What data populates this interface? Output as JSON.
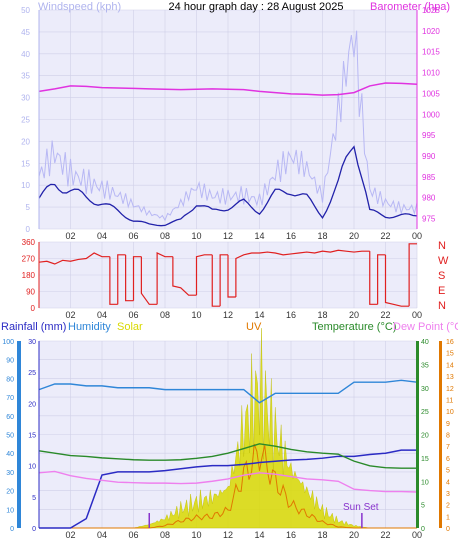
{
  "title": "24 hour graph day : 28 August 2025",
  "colors": {
    "wind_label": "#b0b4ee",
    "wind_avg": "#2222aa",
    "wind_gust": "#b8b8f4",
    "barometer": "#e033e0",
    "direction": "#e02020",
    "rain": "#2b2bc4",
    "humidity": "#2f86d8",
    "solar": "#d9d900",
    "uv": "#e07800",
    "temperature": "#2a8a2a",
    "dewpoint": "#ee80ee",
    "sunset": "#8833cc",
    "plot_bg": "#ececfa",
    "grid": "#d0d0e8"
  },
  "chart_data": [
    {
      "type": "line",
      "panel": "wind-barometer",
      "xlabel_ticks": [
        "02",
        "04",
        "06",
        "08",
        "10",
        "12",
        "14",
        "16",
        "18",
        "20",
        "22",
        "00"
      ],
      "x_hours": [
        0,
        1,
        2,
        3,
        4,
        5,
        6,
        7,
        8,
        9,
        10,
        11,
        12,
        13,
        14,
        15,
        16,
        17,
        18,
        19,
        20,
        21,
        22,
        23,
        24
      ],
      "left_axis": {
        "label": "Windspeed (kph)",
        "ylim": [
          0,
          50
        ],
        "ticks": [
          "0",
          "5",
          "10",
          "15",
          "20",
          "25",
          "30",
          "35",
          "40",
          "45",
          "50"
        ]
      },
      "right_axis": {
        "label": "Barometer (hpa)",
        "ylim": [
          972.5,
          1025
        ],
        "ticks": [
          "975",
          "980",
          "985",
          "990",
          "995",
          "1000",
          "1005",
          "1010",
          "1015",
          "1020",
          "1025"
        ]
      },
      "series": [
        {
          "name": "Windspeed (kph)",
          "role": "wind_avg",
          "values": [
            7,
            10,
            9,
            7,
            6,
            4,
            2,
            1,
            1,
            2,
            6,
            4,
            5,
            6,
            4,
            8,
            9,
            7,
            3,
            10,
            21,
            4,
            3,
            3,
            3
          ]
        },
        {
          "name": "",
          "role": "wind_gust",
          "values": [
            12,
            20,
            16,
            14,
            11,
            8,
            5,
            3,
            2,
            5,
            9,
            8,
            9,
            10,
            8,
            14,
            16,
            12,
            6,
            22,
            40,
            9,
            7,
            6,
            6
          ]
        },
        {
          "name": "Barometer (hpa)",
          "role": "barometer",
          "values": [
            1005.5,
            1006.1,
            1006.8,
            1006.7,
            1006.4,
            1006.3,
            1006.2,
            1006.1,
            1006.0,
            1005.9,
            1006.0,
            1006.1,
            1006.0,
            1005.9,
            1005.5,
            1005.2,
            1004.9,
            1004.8,
            1004.6,
            1004.7,
            1005.2,
            1006.8,
            1007.5,
            1007.4,
            1007.2
          ]
        }
      ]
    },
    {
      "type": "line",
      "panel": "wind-direction",
      "xlabel_ticks": [
        "02",
        "04",
        "06",
        "08",
        "10",
        "12",
        "14",
        "16",
        "18",
        "20",
        "22",
        "00"
      ],
      "ylim": [
        0,
        360
      ],
      "yticks": [
        "0",
        "90",
        "180",
        "270",
        "360"
      ],
      "compass": [
        "N",
        "W",
        "S",
        "E",
        "N"
      ],
      "series": [
        {
          "name": "",
          "role": "direction",
          "x_hours": [
            0,
            0.5,
            1,
            1.5,
            2,
            2.5,
            3,
            3.5,
            4,
            4.5,
            5,
            5.5,
            6,
            6.5,
            7,
            7.5,
            8,
            8.5,
            9,
            9.5,
            10,
            10.5,
            11,
            11.5,
            12,
            12.5,
            13,
            13.5,
            14,
            14.5,
            15,
            15.5,
            16,
            16.5,
            17,
            17.5,
            18,
            18.5,
            19,
            19.5,
            20,
            20.5,
            21,
            21.5,
            22,
            22.5,
            23,
            23.5,
            24
          ],
          "values": [
            250,
            255,
            240,
            260,
            255,
            265,
            270,
            300,
            280,
            20,
            290,
            40,
            280,
            80,
            20,
            300,
            280,
            120,
            110,
            70,
            280,
            290,
            10,
            290,
            60,
            270,
            290,
            300,
            300,
            305,
            300,
            290,
            295,
            300,
            305,
            300,
            310,
            305,
            315,
            310,
            305,
            310,
            20,
            290,
            30,
            20,
            10,
            350,
            350
          ]
        }
      ]
    },
    {
      "type": "line",
      "panel": "rain-humidity-solar-temperature",
      "xlabel_ticks": [
        "02",
        "04",
        "06",
        "08",
        "10",
        "12",
        "14",
        "16",
        "18",
        "20",
        "22",
        "00"
      ],
      "x_hours": [
        0,
        1,
        2,
        3,
        4,
        5,
        6,
        7,
        8,
        9,
        10,
        11,
        12,
        13,
        14,
        15,
        16,
        17,
        18,
        19,
        20,
        21,
        22,
        23,
        24
      ],
      "axes": {
        "humidity": {
          "label": "Humidity",
          "ylim": [
            0,
            100
          ],
          "ticks": [
            "0",
            "10",
            "20",
            "30",
            "40",
            "50",
            "60",
            "70",
            "80",
            "90",
            "100"
          ]
        },
        "rainfall": {
          "label": "Rainfall (mm)",
          "ylim": [
            0,
            30
          ],
          "ticks": [
            "0",
            "5",
            "10",
            "15",
            "20",
            "25",
            "30"
          ]
        },
        "temperature": {
          "label": "Temperature (°C)",
          "ylim": [
            0,
            40
          ],
          "ticks": [
            "0",
            "5",
            "10",
            "15",
            "20",
            "25",
            "30",
            "35",
            "40"
          ]
        },
        "uv": {
          "label": "UV",
          "ylim": [
            0,
            16
          ],
          "ticks": [
            "0",
            "1",
            "2",
            "3",
            "4",
            "5",
            "6",
            "7",
            "8",
            "9",
            "10",
            "11",
            "12",
            "13",
            "14",
            "15",
            "16"
          ]
        },
        "solar": {
          "label": "Solar"
        },
        "dewpoint": {
          "label": "Dew Point (°C)"
        }
      },
      "annotation": "Sun Set",
      "sunrise_hour": 7.0,
      "sunset_hour": 20.5,
      "series": [
        {
          "name": "Rainfall (mm)",
          "role": "rain",
          "values": [
            0,
            0,
            0,
            1.5,
            8.5,
            9.0,
            9.0,
            9.0,
            9.2,
            9.5,
            9.8,
            10.0,
            10.0,
            10.2,
            10.5,
            10.7,
            10.9,
            11.0,
            11.2,
            11.5,
            11.5,
            11.8,
            12.0,
            12.5,
            12.5
          ]
        },
        {
          "name": "Humidity",
          "role": "humidity",
          "values": [
            74,
            77,
            77,
            76,
            76,
            75,
            75,
            75,
            74,
            74,
            74,
            74,
            74,
            74,
            67,
            72,
            72,
            72,
            72,
            72,
            78,
            78,
            78,
            79,
            78
          ]
        },
        {
          "name": "Temperature (°C)",
          "role": "temperature",
          "values": [
            16.5,
            16.0,
            15.5,
            15.3,
            15.0,
            14.8,
            14.6,
            14.5,
            14.5,
            14.6,
            14.9,
            15.3,
            16.0,
            17.0,
            18.0,
            17.5,
            16.8,
            16.3,
            16.0,
            15.8,
            14.3,
            13.3,
            12.9,
            12.8,
            12.8
          ]
        },
        {
          "name": "Dew Point (°C)",
          "role": "dewpoint",
          "values": [
            11.8,
            12.1,
            11.2,
            10.6,
            10.2,
            9.8,
            9.7,
            9.6,
            9.6,
            9.5,
            9.6,
            10.0,
            10.5,
            11.3,
            11.8,
            11.5,
            11.0,
            10.5,
            10.3,
            10.0,
            8.3,
            8.0,
            7.8,
            7.8,
            7.7
          ]
        },
        {
          "name": "Solar",
          "role": "solar",
          "unit": "uv-scale",
          "values": [
            0,
            0,
            0,
            0,
            0,
            0,
            0,
            0.3,
            0.8,
            1.6,
            2.2,
            2.6,
            3.4,
            8.5,
            12.0,
            8.0,
            5.0,
            3.2,
            1.5,
            0.6,
            0.2,
            0,
            0,
            0,
            0
          ]
        },
        {
          "name": "UV",
          "role": "uv",
          "values": [
            0,
            0,
            0,
            0,
            0,
            0,
            0,
            0,
            0.2,
            0.6,
            0.9,
            1.0,
            1.5,
            4.5,
            6.5,
            4.0,
            2.0,
            1.2,
            0.5,
            0.1,
            0,
            0,
            0,
            0,
            0
          ]
        }
      ]
    }
  ]
}
